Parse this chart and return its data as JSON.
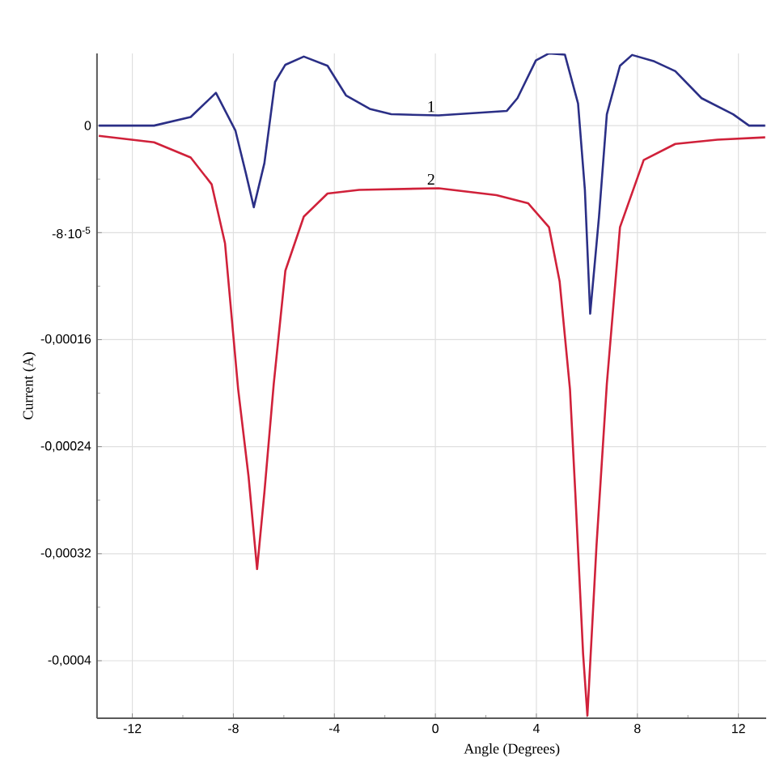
{
  "chart_data": {
    "type": "line",
    "xlabel": "Angle (Degrees)",
    "ylabel": "Current (A)",
    "xlim": [
      -13.4,
      13.1
    ],
    "ylim": [
      -0.000443,
      5.4e-05
    ],
    "xticks": [
      -12,
      -8,
      -4,
      0,
      4,
      8,
      12
    ],
    "yticks": [
      0,
      {
        "value": -8e-05,
        "label": "-8·10$^{-5}$"
      },
      {
        "value": -0.00016,
        "label": "-0,00016"
      },
      {
        "value": -0.00024,
        "label": "-0,00024"
      },
      {
        "value": -0.00032,
        "label": "-0,00032"
      },
      {
        "value": -0.0004,
        "label": "-0,0004"
      }
    ],
    "grid": true,
    "marker": "none",
    "line_style": "solid",
    "series": [
      {
        "name": "1",
        "color": "#2b2f86",
        "x": [
          -13.33,
          -11.14,
          -9.69,
          -8.69,
          -7.92,
          -7.5,
          -7.19,
          -6.77,
          -6.35,
          -5.94,
          -5.21,
          -4.27,
          -3.54,
          -2.6,
          -1.75,
          0.13,
          2.83,
          3.25,
          3.98,
          4.5,
          5.13,
          5.65,
          5.92,
          6.13,
          6.48,
          6.79,
          7.31,
          7.79,
          8.67,
          9.5,
          10.54,
          11.79,
          12.42,
          13.06
        ],
        "values": [
          0,
          0,
          6.4e-06,
          2.45e-05,
          -3.6e-06,
          -3.6e-05,
          -6.1e-05,
          -2.8e-05,
          3.26e-05,
          4.55e-05,
          5.16e-05,
          4.47e-05,
          2.26e-05,
          1.25e-05,
          8.5e-06,
          7.6e-06,
          1.1e-05,
          2.05e-05,
          4.87e-05,
          5.4e-05,
          5.3e-05,
          1.65e-05,
          -4.8e-05,
          -0.0001406,
          -6.8e-05,
          8.5e-06,
          4.47e-05,
          5.28e-05,
          4.8e-05,
          4.07e-05,
          2.05e-05,
          8.5e-06,
          0,
          0
        ]
      },
      {
        "name": "2",
        "color": "#d0213a",
        "x": [
          -13.33,
          -11.14,
          -9.69,
          -8.86,
          -8.33,
          -7.81,
          -7.4,
          -7.06,
          -6.77,
          -6.4,
          -5.94,
          -5.21,
          -4.27,
          -3.02,
          0.13,
          2.42,
          3.67,
          4.5,
          4.92,
          5.33,
          5.54,
          5.85,
          6.02,
          6.38,
          6.79,
          7.31,
          8.25,
          9.5,
          11.17,
          13.06
        ],
        "values": [
          -7.6e-06,
          -1.25e-05,
          -2.38e-05,
          -4.39e-05,
          -8.8e-05,
          -0.000197,
          -0.000262,
          -0.0003315,
          -0.000274,
          -0.000193,
          -0.0001084,
          -6.8e-05,
          -5.08e-05,
          -4.8e-05,
          -4.68e-05,
          -5.2e-05,
          -5.8e-05,
          -7.6e-05,
          -0.0001164,
          -0.000197,
          -0.000274,
          -0.000395,
          -0.000441,
          -0.000314,
          -0.000193,
          -7.6e-05,
          -2.57e-05,
          -1.37e-05,
          -1.05e-05,
          -8.8e-06
        ]
      }
    ]
  }
}
